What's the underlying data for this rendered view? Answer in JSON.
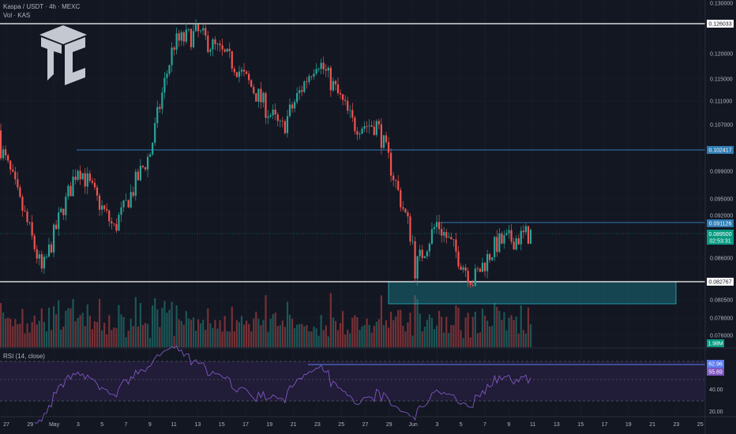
{
  "header": {
    "symbol_line": "Kaspa / USDT · 4h · MEXC",
    "volume_line": "Vol · KAS",
    "rsi_line": "RSI (14, close)"
  },
  "logo": {
    "name": "tc-logo-icon"
  },
  "colors": {
    "background": "#131722",
    "up": "#26a69a",
    "down": "#ef5350",
    "level_line": "#2e7bb3",
    "white_line": "#ffffff",
    "support_zone": "#1a9aa6",
    "rsi_line": "#7e57c2",
    "rsi_band": "#241d3a",
    "current_price_bg": "#089981"
  },
  "chart_data": {
    "type": "candlestick",
    "title": "Kaspa / USDT · 4h · MEXC",
    "y_ticks": [
      "0.130000",
      "0.120000",
      "0.115000",
      "0.111000",
      "0.107000",
      "0.099000",
      "0.095000",
      "0.092000",
      "0.086000",
      "0.080500",
      "0.078000",
      "0.076000"
    ],
    "x_ticks": [
      "27",
      "29",
      "May",
      "3",
      "5",
      "7",
      "9",
      "11",
      "13",
      "15",
      "17",
      "19",
      "21",
      "23",
      "25",
      "27",
      "29",
      "Jun",
      "3",
      "5",
      "7",
      "9",
      "11",
      "13",
      "15",
      "17",
      "19",
      "21",
      "23",
      "25"
    ],
    "horizontal_levels": [
      {
        "value": "0.126033",
        "style": "white"
      },
      {
        "value": "0.102417",
        "style": "blue"
      },
      {
        "value": "0.091126",
        "style": "blue"
      },
      {
        "value": "0.082767",
        "style": "white"
      }
    ],
    "current_price": {
      "value": "0.089500",
      "countdown": "02:53:31"
    },
    "support_zone": {
      "from": 0.081,
      "to": 0.0828,
      "start_date": "Jun 1",
      "end_date": "Jun 22"
    },
    "volume": {
      "last_label": "1.98M"
    },
    "rsi": {
      "period": 14,
      "ticks": [
        "40.00",
        "20.00"
      ],
      "value_labels": [
        "62.96",
        "55.69"
      ],
      "bands": [
        30,
        70
      ],
      "ylim": [
        15,
        85
      ]
    },
    "ohlc_path_approx": [
      {
        "date": "Apr 26",
        "close": 0.106
      },
      {
        "date": "Apr 30",
        "close": 0.084
      },
      {
        "date": "May 3",
        "close": 0.1
      },
      {
        "date": "May 6",
        "close": 0.09
      },
      {
        "date": "May 9",
        "close": 0.102
      },
      {
        "date": "May 11",
        "close": 0.122
      },
      {
        "date": "May 13",
        "close": 0.124
      },
      {
        "date": "May 16",
        "close": 0.118
      },
      {
        "date": "May 20",
        "close": 0.106
      },
      {
        "date": "May 23",
        "close": 0.119
      },
      {
        "date": "May 26",
        "close": 0.107
      },
      {
        "date": "May 28",
        "close": 0.107
      },
      {
        "date": "May 31",
        "close": 0.088
      },
      {
        "date": "Jun 1",
        "close": 0.084
      },
      {
        "date": "Jun 3",
        "close": 0.091
      },
      {
        "date": "Jun 6",
        "close": 0.083
      },
      {
        "date": "Jun 8",
        "close": 0.088
      },
      {
        "date": "Jun 11",
        "close": 0.0895
      }
    ]
  }
}
